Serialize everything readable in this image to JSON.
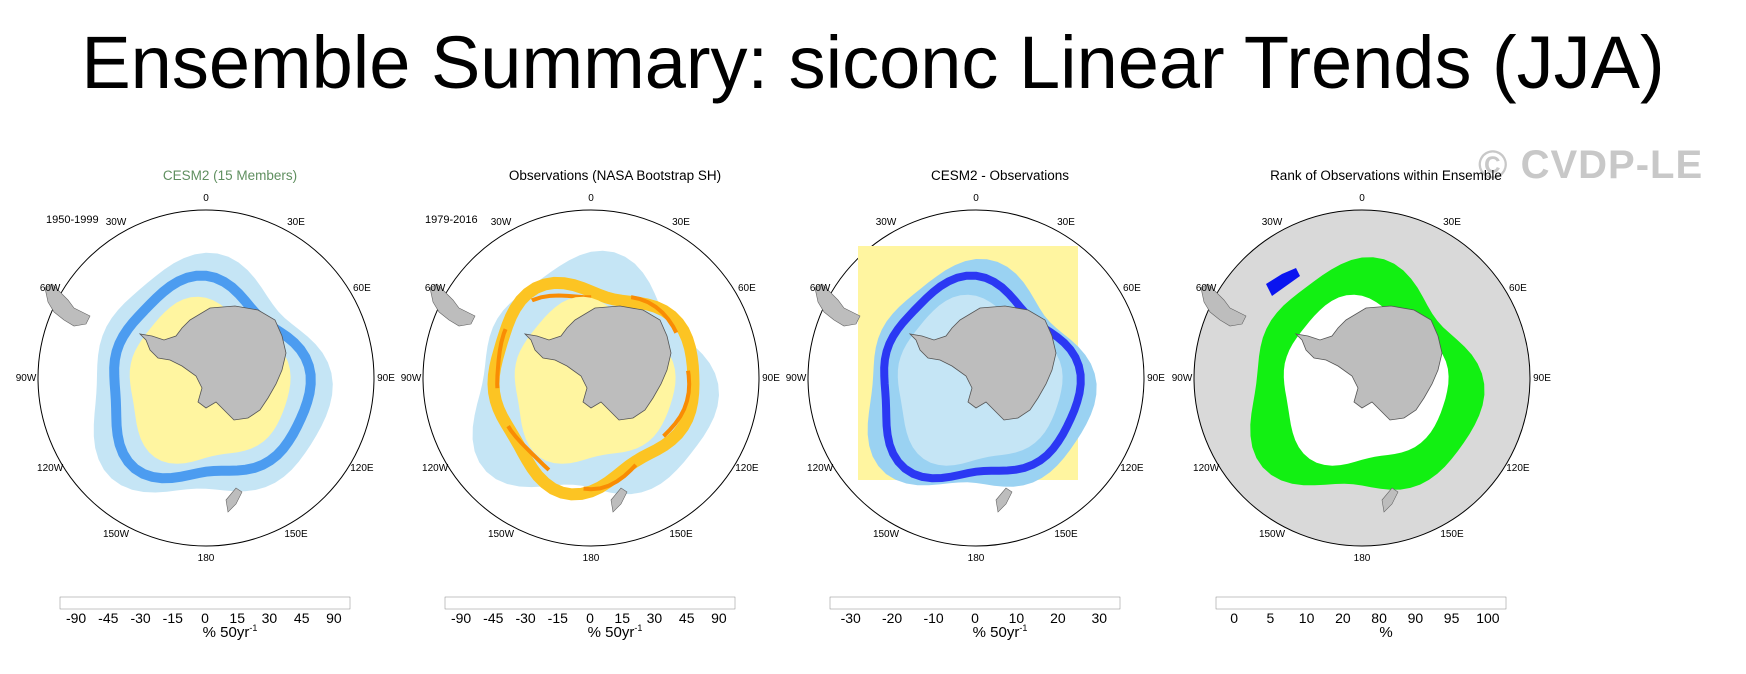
{
  "title": "Ensemble Summary: siconc Linear Trends (JJA)",
  "watermark": "© CVDP-LE",
  "colors": {
    "title_cesm": "#5f8f5f",
    "land": "#bdbdbd",
    "ocean_bg": "#ffffff",
    "rank_bg": "#d9d9d9"
  },
  "longitude_labels": [
    "0",
    "30E",
    "60E",
    "90E",
    "120E",
    "150E",
    "180",
    "150W",
    "120W",
    "90W",
    "60W",
    "30W"
  ],
  "panels": [
    {
      "title": "CESM2 (15 Members)",
      "date_range": "1950-1999",
      "units": "% 50yr",
      "units_exp": "-1",
      "colorbar": {
        "colors": [
          "#8e2ce5",
          "#5b2cf0",
          "#2b38f3",
          "#2f5fe0",
          "#3f7fe8",
          "#4c9cf0",
          "#1fa8f5",
          "#5ec3f5",
          "#9ad2f2",
          "#c5e5f5",
          "#fff5a0",
          "#fde057",
          "#fcc423",
          "#fca30c",
          "#f98c04",
          "#f76b05",
          "#f33d07",
          "#e0100f",
          "#c70f24",
          "#e0696f",
          "#f8b3b3"
        ],
        "labels": [
          "-90",
          "-45",
          "-30",
          "-15",
          "0",
          "15",
          "30",
          "45",
          "90"
        ]
      }
    },
    {
      "title": "Observations (NASA Bootstrap SH)",
      "date_range": "1979-2016",
      "units": "% 50yr",
      "units_exp": "-1",
      "colorbar": {
        "colors": [
          "#8e2ce5",
          "#5b2cf0",
          "#2b38f3",
          "#2f5fe0",
          "#3f7fe8",
          "#4c9cf0",
          "#1fa8f5",
          "#5ec3f5",
          "#9ad2f2",
          "#c5e5f5",
          "#fff5a0",
          "#fde057",
          "#fcc423",
          "#fca30c",
          "#f98c04",
          "#f76b05",
          "#f33d07",
          "#e0100f",
          "#c70f24",
          "#e0696f",
          "#f8b3b3"
        ],
        "labels": [
          "-90",
          "-45",
          "-30",
          "-15",
          "0",
          "15",
          "30",
          "45",
          "90"
        ]
      }
    },
    {
      "title": "CESM2 - Observations",
      "date_range": "",
      "units": "% 50yr",
      "units_exp": "-1",
      "colorbar": {
        "colors": [
          "#8e2ce5",
          "#2b38f3",
          "#3f7fe8",
          "#1fa8f5",
          "#5ec3f5",
          "#9ad2f2",
          "#fff5a0",
          "#fcc423",
          "#f98c04",
          "#f33d07",
          "#e0100f",
          "#c70f24",
          "#f8b3b3"
        ],
        "labels": [
          "-30",
          "-20",
          "-10",
          "0",
          "10",
          "20",
          "30"
        ]
      }
    },
    {
      "title": "Rank of Observations within Ensemble",
      "date_range": "",
      "units": "%",
      "units_exp": "",
      "colorbar": {
        "colors": [
          "#0a14f0",
          "#6670f0",
          "#b6b8f5",
          "#e6e8fb",
          "#ffffff",
          "#ffffff",
          "#e6fbe6",
          "#b8f5b8",
          "#6ff06f",
          "#12f012"
        ],
        "labels": [
          "0",
          "5",
          "10",
          "20",
          "80",
          "90",
          "95",
          "100"
        ]
      }
    }
  ]
}
